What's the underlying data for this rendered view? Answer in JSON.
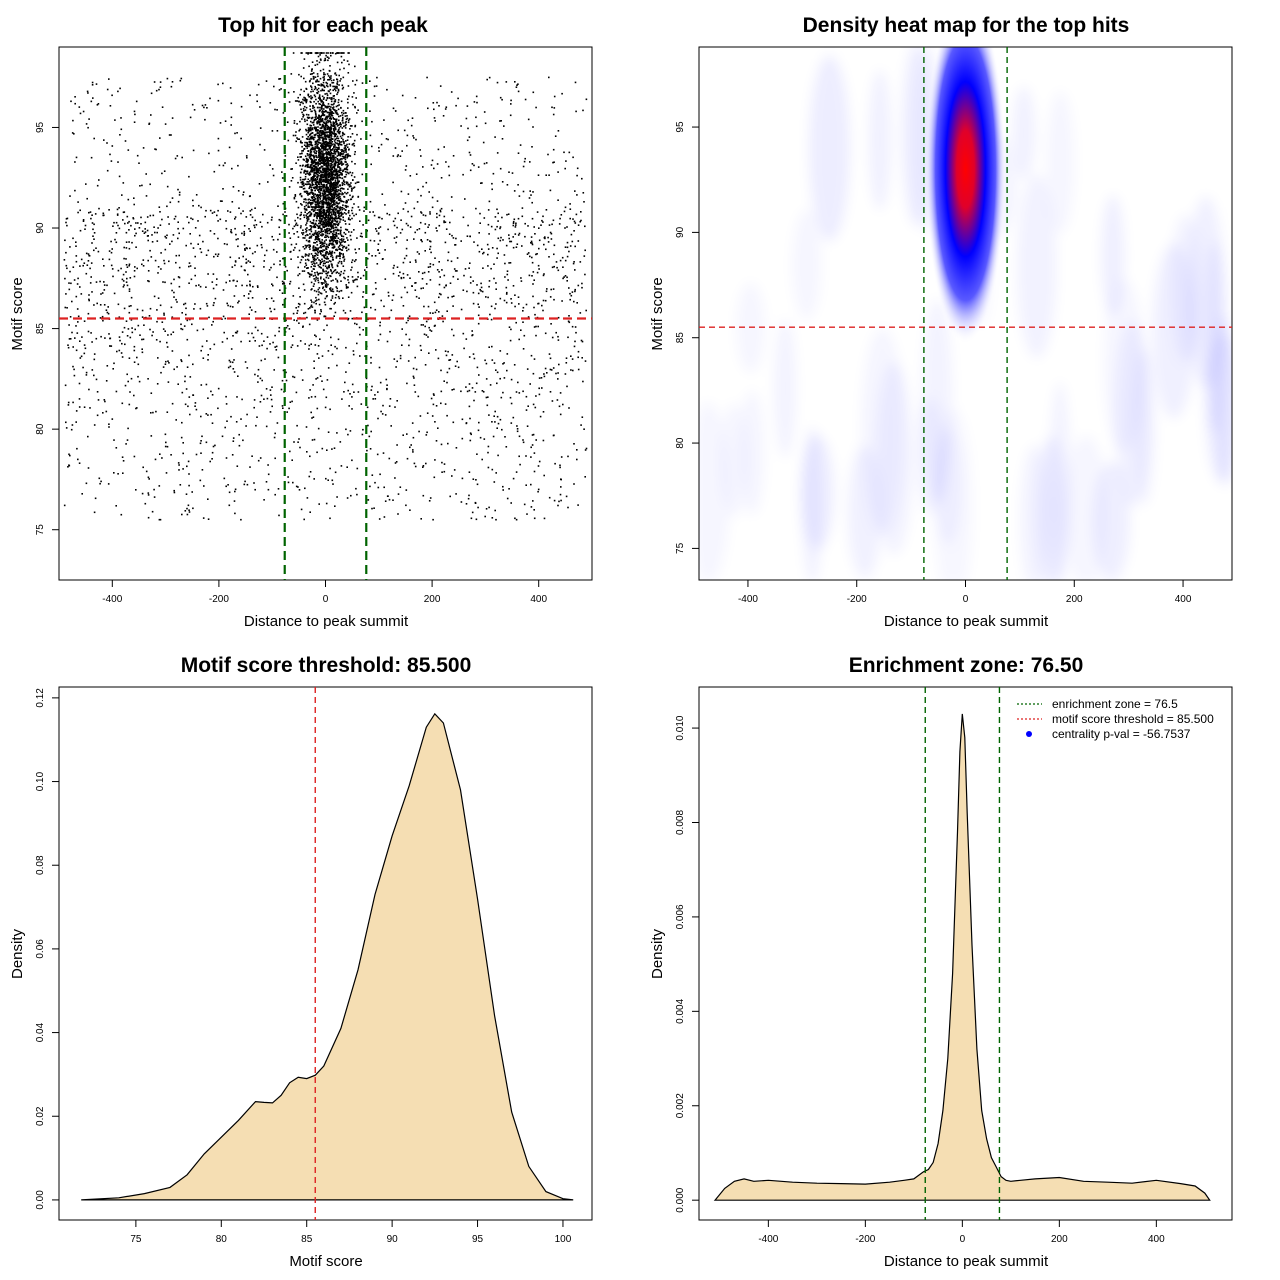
{
  "chart_data": [
    {
      "type": "scatter",
      "title": "Top hit for each peak",
      "xlabel": "Distance to peak summit",
      "ylabel": "Motif score",
      "xlim": [
        -500,
        500
      ],
      "ylim": [
        72.5,
        99.0
      ],
      "x_ticks": [
        -400,
        -200,
        0,
        200,
        400
      ],
      "x_tick_labels": [
        "-400",
        "-200",
        "0",
        "200",
        "400"
      ],
      "y_ticks": [
        75,
        80,
        85,
        90,
        95
      ],
      "y_tick_labels": [
        "75",
        "80",
        "85",
        "90",
        "95"
      ],
      "hline": {
        "y": 85.5,
        "color": "#dd2222",
        "style": "dashed"
      },
      "vlines": [
        {
          "x": -76.5,
          "color": "#006400",
          "style": "dashed"
        },
        {
          "x": 76.5,
          "color": "#006400",
          "style": "dashed"
        }
      ],
      "point_groups": [
        {
          "name": "",
          "count": 2600,
          "x_range": [
            -490,
            490
          ],
          "y_range": [
            75.5,
            97.5
          ]
        },
        {
          "name": "",
          "count": 3200,
          "x_center": 0,
          "x_sd": 22,
          "y_center": 92.5,
          "y_sd": 2.6,
          "y_range": [
            79,
            98.7
          ]
        }
      ]
    },
    {
      "type": "heatmap",
      "title": "Density heat map for the top hits",
      "xlabel": "Distance to peak summit",
      "ylabel": "Motif score",
      "xlim": [
        -490,
        490
      ],
      "ylim": [
        73.5,
        98.8
      ],
      "x_ticks": [
        -400,
        -200,
        0,
        200,
        400
      ],
      "x_tick_labels": [
        "-400",
        "-200",
        "0",
        "200",
        "400"
      ],
      "y_ticks": [
        75,
        80,
        85,
        90,
        95
      ],
      "y_tick_labels": [
        "75",
        "80",
        "85",
        "90",
        "95"
      ],
      "colors": [
        "#ffffff",
        "#0000ff",
        "#ff0000"
      ],
      "peak": {
        "x": 0,
        "y": 93
      },
      "hline": {
        "y": 85.5,
        "color": "#dd2222",
        "style": "dashed"
      },
      "vlines": [
        {
          "x": -76.5,
          "color": "#006400",
          "style": "dashed"
        },
        {
          "x": 76.5,
          "color": "#006400",
          "style": "dashed"
        }
      ]
    },
    {
      "type": "area",
      "title": "Motif score threshold: 85.500",
      "xlabel": "Motif score",
      "ylabel": "Density",
      "xlim": [
        70.5,
        101.7
      ],
      "ylim": [
        -0.0048,
        0.1226
      ],
      "fill": "#f5deb3",
      "x_ticks": [
        75,
        80,
        85,
        90,
        95,
        100
      ],
      "x_tick_labels": [
        "75",
        "80",
        "85",
        "90",
        "95",
        "100"
      ],
      "y_ticks": [
        0,
        0.02,
        0.04,
        0.06,
        0.08,
        0.1,
        0.12
      ],
      "y_tick_labels": [
        "0.00",
        "0.02",
        "0.04",
        "0.06",
        "0.08",
        "0.10",
        "0.12"
      ],
      "x": [
        71.8,
        74,
        75.5,
        77,
        78,
        79,
        80,
        81,
        82,
        82.5,
        83,
        83.5,
        84,
        84.5,
        85,
        85.5,
        86,
        87,
        88,
        89,
        90,
        91,
        92,
        92.5,
        93,
        94,
        95,
        96,
        97,
        98,
        99,
        100,
        100.6
      ],
      "y": [
        0.0,
        0.0005,
        0.0015,
        0.003,
        0.006,
        0.011,
        0.015,
        0.019,
        0.0235,
        0.0233,
        0.0232,
        0.025,
        0.028,
        0.0293,
        0.029,
        0.0298,
        0.032,
        0.041,
        0.055,
        0.073,
        0.087,
        0.099,
        0.113,
        0.1162,
        0.114,
        0.098,
        0.072,
        0.044,
        0.021,
        0.008,
        0.002,
        0.0003,
        0.0
      ],
      "vline": {
        "x": 85.5,
        "color": "#dd2222",
        "style": "dashed"
      }
    },
    {
      "type": "area",
      "title": "Enrichment zone: 76.50",
      "xlabel": "Distance to peak summit",
      "ylabel": "Density",
      "xlim": [
        -543,
        556
      ],
      "ylim": [
        -0.00042,
        0.01087
      ],
      "fill": "#f5deb3",
      "x_ticks": [
        -400,
        -200,
        0,
        200,
        400
      ],
      "x_tick_labels": [
        "-400",
        "-200",
        "0",
        "200",
        "400"
      ],
      "y_ticks": [
        0,
        0.002,
        0.004,
        0.006,
        0.008,
        0.01
      ],
      "y_tick_labels": [
        "0.000",
        "0.002",
        "0.004",
        "0.006",
        "0.008",
        "0.010"
      ],
      "x": [
        -510,
        -490,
        -470,
        -450,
        -430,
        -400,
        -350,
        -300,
        -250,
        -200,
        -150,
        -120,
        -100,
        -80,
        -70,
        -60,
        -50,
        -40,
        -30,
        -20,
        -10,
        -5,
        0,
        5,
        10,
        20,
        30,
        40,
        50,
        60,
        70,
        80,
        90,
        100,
        120,
        150,
        200,
        250,
        300,
        350,
        400,
        450,
        480,
        500,
        510
      ],
      "y": [
        0.0,
        0.00025,
        0.0004,
        0.00045,
        0.0004,
        0.00042,
        0.00038,
        0.00036,
        0.00035,
        0.00034,
        0.00038,
        0.00042,
        0.00045,
        0.0006,
        0.00065,
        0.0008,
        0.0012,
        0.0019,
        0.003,
        0.0048,
        0.0078,
        0.0095,
        0.0103,
        0.0098,
        0.0082,
        0.0054,
        0.0032,
        0.0019,
        0.0013,
        0.0009,
        0.0007,
        0.0005,
        0.00042,
        0.0004,
        0.00042,
        0.00045,
        0.00048,
        0.0004,
        0.00038,
        0.00036,
        0.00042,
        0.00035,
        0.0003,
        0.00015,
        0.0
      ],
      "vlines": [
        {
          "x": -76.5,
          "color": "#006400",
          "style": "dashed"
        },
        {
          "x": 76.5,
          "color": "#006400",
          "style": "dashed"
        }
      ],
      "legend": {
        "position": "top-right",
        "entries": [
          {
            "label": "enrichment zone = 76.5",
            "color": "#006400",
            "kind": "dotted-line"
          },
          {
            "label": "motif score threshold = 85.500",
            "color": "#dd2222",
            "kind": "dotted-line"
          },
          {
            "label": "centrality p-val = -56.7537",
            "color": "#0000ff",
            "kind": "point"
          }
        ]
      }
    }
  ]
}
